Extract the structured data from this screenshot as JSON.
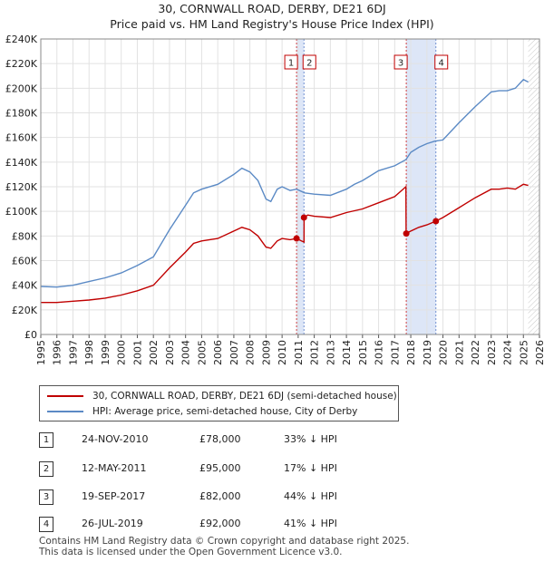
{
  "chart_data": {
    "type": "line",
    "title": "30, CORNWALL ROAD, DERBY, DE21 6DJ",
    "subtitle": "Price paid vs. HM Land Registry's House Price Index (HPI)",
    "xlim": [
      1995,
      2026
    ],
    "ylim": [
      0,
      240000
    ],
    "x_ticks": [
      "1995",
      "1996",
      "1997",
      "1998",
      "1999",
      "2000",
      "2001",
      "2002",
      "2003",
      "2004",
      "2005",
      "2006",
      "2007",
      "2008",
      "2009",
      "2010",
      "2011",
      "2012",
      "2013",
      "2014",
      "2015",
      "2016",
      "2017",
      "2018",
      "2019",
      "2020",
      "2021",
      "2022",
      "2023",
      "2024",
      "2025",
      "2026"
    ],
    "y_ticks": [
      {
        "value": 0,
        "label": "£0"
      },
      {
        "value": 20000,
        "label": "£20K"
      },
      {
        "value": 40000,
        "label": "£40K"
      },
      {
        "value": 60000,
        "label": "£60K"
      },
      {
        "value": 80000,
        "label": "£80K"
      },
      {
        "value": 100000,
        "label": "£100K"
      },
      {
        "value": 120000,
        "label": "£120K"
      },
      {
        "value": 140000,
        "label": "£140K"
      },
      {
        "value": 160000,
        "label": "£160K"
      },
      {
        "value": 180000,
        "label": "£180K"
      },
      {
        "value": 200000,
        "label": "£200K"
      },
      {
        "value": 220000,
        "label": "£220K"
      },
      {
        "value": 240000,
        "label": "£240K"
      }
    ],
    "series": [
      {
        "name": "HPI: Average price, semi-detached house, City of Derby",
        "color": "#5b8ac5",
        "x": [
          1995.0,
          1996.0,
          1997.0,
          1998.0,
          1999.0,
          2000.0,
          2001.0,
          2002.0,
          2003.0,
          2004.0,
          2004.5,
          2005.0,
          2006.0,
          2007.0,
          2007.5,
          2008.0,
          2008.5,
          2009.0,
          2009.3,
          2009.7,
          2010.0,
          2010.5,
          2010.9,
          2011.4,
          2012.0,
          2013.0,
          2014.0,
          2014.5,
          2015.0,
          2016.0,
          2017.0,
          2017.7,
          2018.0,
          2018.5,
          2019.0,
          2019.5,
          2020.0,
          2020.5,
          2021.0,
          2022.0,
          2023.0,
          2023.5,
          2024.0,
          2024.5,
          2025.0,
          2025.3
        ],
        "y": [
          39000,
          38500,
          40000,
          43000,
          46000,
          50000,
          56000,
          63000,
          85000,
          105000,
          115000,
          118000,
          122000,
          130000,
          135000,
          132000,
          125000,
          110000,
          108000,
          118000,
          120000,
          117000,
          118000,
          115000,
          114000,
          113000,
          118000,
          122000,
          125000,
          133000,
          137000,
          142000,
          148000,
          152000,
          155000,
          157000,
          158000,
          165000,
          172000,
          185000,
          197000,
          198000,
          198000,
          200000,
          207000,
          205000
        ]
      },
      {
        "name": "30, CORNWALL ROAD, DERBY, DE21 6DJ (semi-detached house)",
        "color": "#c00000",
        "x": [
          1995.0,
          1996.0,
          1997.0,
          1998.0,
          1999.0,
          2000.0,
          2001.0,
          2002.0,
          2003.0,
          2004.0,
          2004.5,
          2005.0,
          2006.0,
          2007.0,
          2007.5,
          2008.0,
          2008.5,
          2009.0,
          2009.3,
          2009.7,
          2010.0,
          2010.5,
          2010.9,
          2011.2,
          2011.36,
          2011.37,
          2011.6,
          2012.0,
          2013.0,
          2014.0,
          2015.0,
          2016.0,
          2017.0,
          2017.7,
          2017.71,
          2018.0,
          2018.5,
          2019.0,
          2019.56,
          2020.0,
          2021.0,
          2022.0,
          2023.0,
          2023.5,
          2024.0,
          2024.5,
          2025.0,
          2025.3
        ],
        "y": [
          26000,
          26000,
          27000,
          28000,
          29500,
          32000,
          35500,
          40000,
          54000,
          67000,
          74000,
          76000,
          78000,
          84000,
          87000,
          85000,
          80000,
          71000,
          70000,
          76000,
          78000,
          77000,
          78000,
          76000,
          75000,
          95000,
          97000,
          96000,
          95000,
          99000,
          102000,
          107000,
          112000,
          120000,
          82000,
          84000,
          87000,
          89000,
          92000,
          95000,
          103000,
          111000,
          118000,
          118000,
          119000,
          118000,
          122000,
          121000
        ]
      }
    ],
    "transactions": [
      {
        "label": "1",
        "x": 2010.9,
        "price": 78000
      },
      {
        "label": "2",
        "x": 2011.36,
        "price": 95000
      },
      {
        "label": "3",
        "x": 2017.72,
        "price": 82000
      },
      {
        "label": "4",
        "x": 2019.56,
        "price": 92000
      }
    ],
    "shaded_ranges": [
      [
        2010.9,
        2011.36
      ],
      [
        2017.72,
        2019.56
      ]
    ],
    "forecast_start": 2025.3
  },
  "legend": {
    "property_label": "30, CORNWALL ROAD, DERBY, DE21 6DJ (semi-detached house)",
    "hpi_label": "HPI: Average price, semi-detached house, City of Derby",
    "property_color": "#c00000",
    "hpi_color": "#5b8ac5"
  },
  "sales": [
    {
      "num": "1",
      "date": "24-NOV-2010",
      "price": "£78,000",
      "hpi": "33% ↓ HPI"
    },
    {
      "num": "2",
      "date": "12-MAY-2011",
      "price": "£95,000",
      "hpi": "17% ↓ HPI"
    },
    {
      "num": "3",
      "date": "19-SEP-2017",
      "price": "£82,000",
      "hpi": "44% ↓ HPI"
    },
    {
      "num": "4",
      "date": "26-JUL-2019",
      "price": "£92,000",
      "hpi": "41% ↓ HPI"
    }
  ],
  "footer": {
    "line1": "Contains HM Land Registry data © Crown copyright and database right 2025.",
    "line2": "This data is licensed under the Open Government Licence v3.0."
  }
}
